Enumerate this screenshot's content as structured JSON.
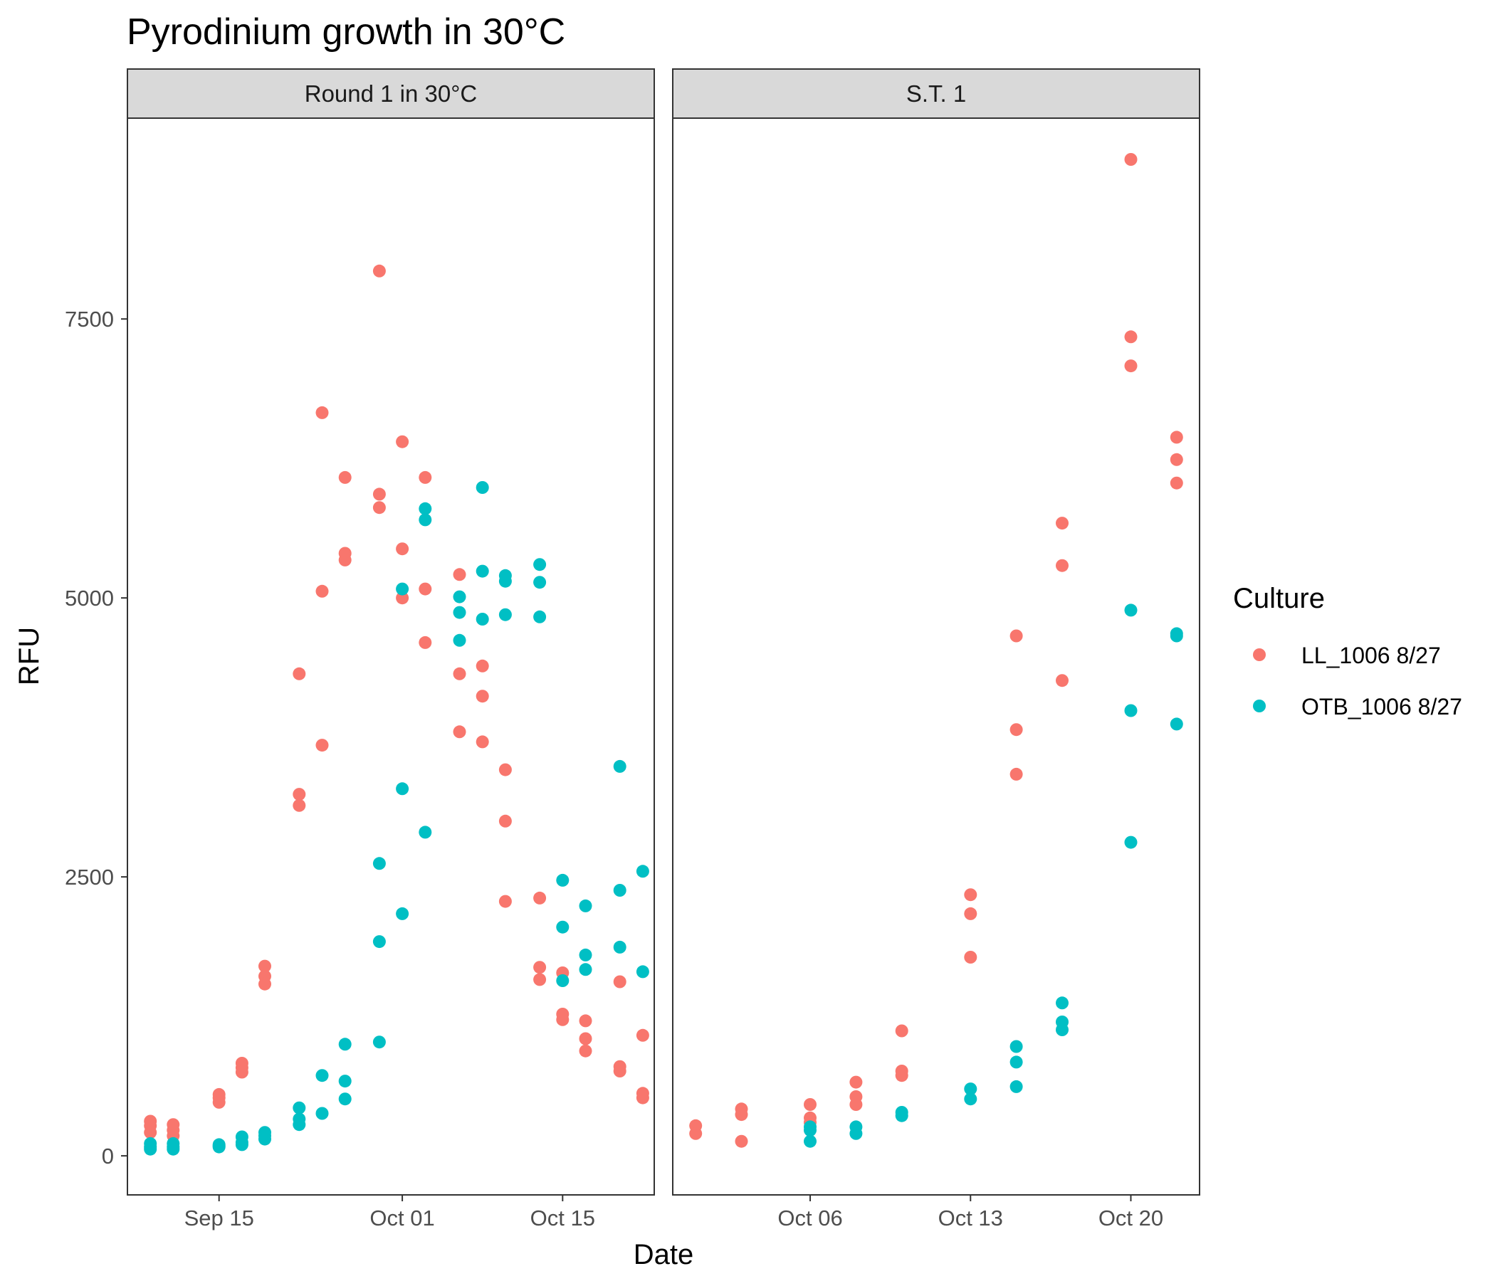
{
  "chart_data": {
    "type": "scatter",
    "title": "Pyrodinium growth in 30°C",
    "xlabel": "Date",
    "ylabel": "RFU",
    "ylim": [
      -350,
      9300
    ],
    "y_ticks": [
      0,
      2500,
      5000,
      7500
    ],
    "y_tick_labels": [
      "0",
      "2500",
      "5000",
      "7500"
    ],
    "legend": {
      "title": "Culture",
      "placement": "right",
      "entries": [
        {
          "label": "LL_1006 8/27",
          "color": "#F8766D"
        },
        {
          "label": "OTB_1006 8/27",
          "color": "#00BFC4"
        }
      ]
    },
    "panels": [
      {
        "strip": "Round 1 in 30°C",
        "xlim": [
          "2024-09-07",
          "2024-10-23"
        ],
        "x_ticks": [
          "2024-09-15",
          "2024-10-01",
          "2024-10-15"
        ],
        "x_tick_labels": [
          "Sep 15",
          "Oct 01",
          "Oct 15"
        ],
        "series": [
          {
            "name": "LL_1006 8/27",
            "color": "#F8766D",
            "points": [
              [
                "2024-09-09",
                310
              ],
              [
                "2024-09-09",
                270
              ],
              [
                "2024-09-09",
                210
              ],
              [
                "2024-09-11",
                280
              ],
              [
                "2024-09-11",
                230
              ],
              [
                "2024-09-11",
                180
              ],
              [
                "2024-09-15",
                550
              ],
              [
                "2024-09-15",
                520
              ],
              [
                "2024-09-15",
                480
              ],
              [
                "2024-09-17",
                830
              ],
              [
                "2024-09-17",
                790
              ],
              [
                "2024-09-17",
                750
              ],
              [
                "2024-09-19",
                1700
              ],
              [
                "2024-09-19",
                1610
              ],
              [
                "2024-09-19",
                1540
              ],
              [
                "2024-09-22",
                4320
              ],
              [
                "2024-09-22",
                3240
              ],
              [
                "2024-09-22",
                3140
              ],
              [
                "2024-09-24",
                6660
              ],
              [
                "2024-09-24",
                5060
              ],
              [
                "2024-09-24",
                3680
              ],
              [
                "2024-09-26",
                6080
              ],
              [
                "2024-09-26",
                5400
              ],
              [
                "2024-09-26",
                5340
              ],
              [
                "2024-09-29",
                7930
              ],
              [
                "2024-09-29",
                5930
              ],
              [
                "2024-09-29",
                5810
              ],
              [
                "2024-10-01",
                6400
              ],
              [
                "2024-10-01",
                5440
              ],
              [
                "2024-10-01",
                5000
              ],
              [
                "2024-10-03",
                6080
              ],
              [
                "2024-10-03",
                5080
              ],
              [
                "2024-10-03",
                4600
              ],
              [
                "2024-10-06",
                5210
              ],
              [
                "2024-10-06",
                4320
              ],
              [
                "2024-10-06",
                3800
              ],
              [
                "2024-10-08",
                4390
              ],
              [
                "2024-10-08",
                4120
              ],
              [
                "2024-10-08",
                3710
              ],
              [
                "2024-10-10",
                3460
              ],
              [
                "2024-10-10",
                3000
              ],
              [
                "2024-10-10",
                2280
              ],
              [
                "2024-10-13",
                2310
              ],
              [
                "2024-10-13",
                1690
              ],
              [
                "2024-10-13",
                1580
              ],
              [
                "2024-10-15",
                1640
              ],
              [
                "2024-10-15",
                1270
              ],
              [
                "2024-10-15",
                1220
              ],
              [
                "2024-10-17",
                1210
              ],
              [
                "2024-10-17",
                1050
              ],
              [
                "2024-10-17",
                940
              ],
              [
                "2024-10-20",
                1560
              ],
              [
                "2024-10-20",
                800
              ],
              [
                "2024-10-20",
                760
              ],
              [
                "2024-10-22",
                1080
              ],
              [
                "2024-10-22",
                560
              ],
              [
                "2024-10-22",
                520
              ]
            ]
          },
          {
            "name": "OTB_1006 8/27",
            "color": "#00BFC4",
            "points": [
              [
                "2024-09-09",
                110
              ],
              [
                "2024-09-09",
                80
              ],
              [
                "2024-09-09",
                60
              ],
              [
                "2024-09-11",
                110
              ],
              [
                "2024-09-11",
                80
              ],
              [
                "2024-09-11",
                60
              ],
              [
                "2024-09-15",
                100
              ],
              [
                "2024-09-15",
                90
              ],
              [
                "2024-09-15",
                80
              ],
              [
                "2024-09-17",
                170
              ],
              [
                "2024-09-17",
                120
              ],
              [
                "2024-09-17",
                100
              ],
              [
                "2024-09-19",
                210
              ],
              [
                "2024-09-19",
                180
              ],
              [
                "2024-09-19",
                150
              ],
              [
                "2024-09-22",
                430
              ],
              [
                "2024-09-22",
                330
              ],
              [
                "2024-09-22",
                280
              ],
              [
                "2024-09-24",
                720
              ],
              [
                "2024-09-24",
                380
              ],
              [
                "2024-09-26",
                1000
              ],
              [
                "2024-09-26",
                670
              ],
              [
                "2024-09-26",
                510
              ],
              [
                "2024-09-29",
                2620
              ],
              [
                "2024-09-29",
                1920
              ],
              [
                "2024-09-29",
                1020
              ],
              [
                "2024-10-01",
                5080
              ],
              [
                "2024-10-01",
                3290
              ],
              [
                "2024-10-01",
                2170
              ],
              [
                "2024-10-03",
                5800
              ],
              [
                "2024-10-03",
                5700
              ],
              [
                "2024-10-03",
                2900
              ],
              [
                "2024-10-06",
                5010
              ],
              [
                "2024-10-06",
                4870
              ],
              [
                "2024-10-06",
                4620
              ],
              [
                "2024-10-08",
                5990
              ],
              [
                "2024-10-08",
                5240
              ],
              [
                "2024-10-08",
                4810
              ],
              [
                "2024-10-10",
                5200
              ],
              [
                "2024-10-10",
                5150
              ],
              [
                "2024-10-10",
                4850
              ],
              [
                "2024-10-13",
                5300
              ],
              [
                "2024-10-13",
                5140
              ],
              [
                "2024-10-13",
                4830
              ],
              [
                "2024-10-15",
                2470
              ],
              [
                "2024-10-15",
                2050
              ],
              [
                "2024-10-15",
                1570
              ],
              [
                "2024-10-17",
                2240
              ],
              [
                "2024-10-17",
                1800
              ],
              [
                "2024-10-17",
                1670
              ],
              [
                "2024-10-20",
                3490
              ],
              [
                "2024-10-20",
                2380
              ],
              [
                "2024-10-20",
                1870
              ],
              [
                "2024-10-22",
                2550
              ],
              [
                "2024-10-22",
                1650
              ]
            ]
          }
        ]
      },
      {
        "strip": "S.T. 1",
        "xlim": [
          "2024-09-30",
          "2024-10-23"
        ],
        "x_ticks": [
          "2024-10-06",
          "2024-10-13",
          "2024-10-20"
        ],
        "x_tick_labels": [
          "Oct 06",
          "Oct 13",
          "Oct 20"
        ],
        "series": [
          {
            "name": "LL_1006 8/27",
            "color": "#F8766D",
            "points": [
              [
                "2024-10-01",
                270
              ],
              [
                "2024-10-01",
                200
              ],
              [
                "2024-10-03",
                420
              ],
              [
                "2024-10-03",
                370
              ],
              [
                "2024-10-03",
                130
              ],
              [
                "2024-10-06",
                460
              ],
              [
                "2024-10-06",
                340
              ],
              [
                "2024-10-06",
                300
              ],
              [
                "2024-10-08",
                660
              ],
              [
                "2024-10-08",
                530
              ],
              [
                "2024-10-08",
                460
              ],
              [
                "2024-10-10",
                1120
              ],
              [
                "2024-10-10",
                760
              ],
              [
                "2024-10-10",
                720
              ],
              [
                "2024-10-13",
                2340
              ],
              [
                "2024-10-13",
                2170
              ],
              [
                "2024-10-13",
                1780
              ],
              [
                "2024-10-15",
                4660
              ],
              [
                "2024-10-15",
                3820
              ],
              [
                "2024-10-15",
                3420
              ],
              [
                "2024-10-17",
                5670
              ],
              [
                "2024-10-17",
                5290
              ],
              [
                "2024-10-17",
                4260
              ],
              [
                "2024-10-20",
                8930
              ],
              [
                "2024-10-20",
                7340
              ],
              [
                "2024-10-20",
                7080
              ],
              [
                "2024-10-22",
                6440
              ],
              [
                "2024-10-22",
                6240
              ],
              [
                "2024-10-22",
                6030
              ]
            ]
          },
          {
            "name": "OTB_1006 8/27",
            "color": "#00BFC4",
            "points": [
              [
                "2024-10-06",
                260
              ],
              [
                "2024-10-06",
                230
              ],
              [
                "2024-10-06",
                130
              ],
              [
                "2024-10-08",
                260
              ],
              [
                "2024-10-08",
                200
              ],
              [
                "2024-10-10",
                390
              ],
              [
                "2024-10-10",
                360
              ],
              [
                "2024-10-13",
                600
              ],
              [
                "2024-10-13",
                510
              ],
              [
                "2024-10-15",
                980
              ],
              [
                "2024-10-15",
                840
              ],
              [
                "2024-10-15",
                620
              ],
              [
                "2024-10-17",
                1370
              ],
              [
                "2024-10-17",
                1200
              ],
              [
                "2024-10-17",
                1130
              ],
              [
                "2024-10-20",
                4890
              ],
              [
                "2024-10-20",
                3990
              ],
              [
                "2024-10-20",
                2810
              ],
              [
                "2024-10-22",
                4680
              ],
              [
                "2024-10-22",
                4660
              ],
              [
                "2024-10-22",
                3870
              ]
            ]
          }
        ]
      }
    ]
  }
}
